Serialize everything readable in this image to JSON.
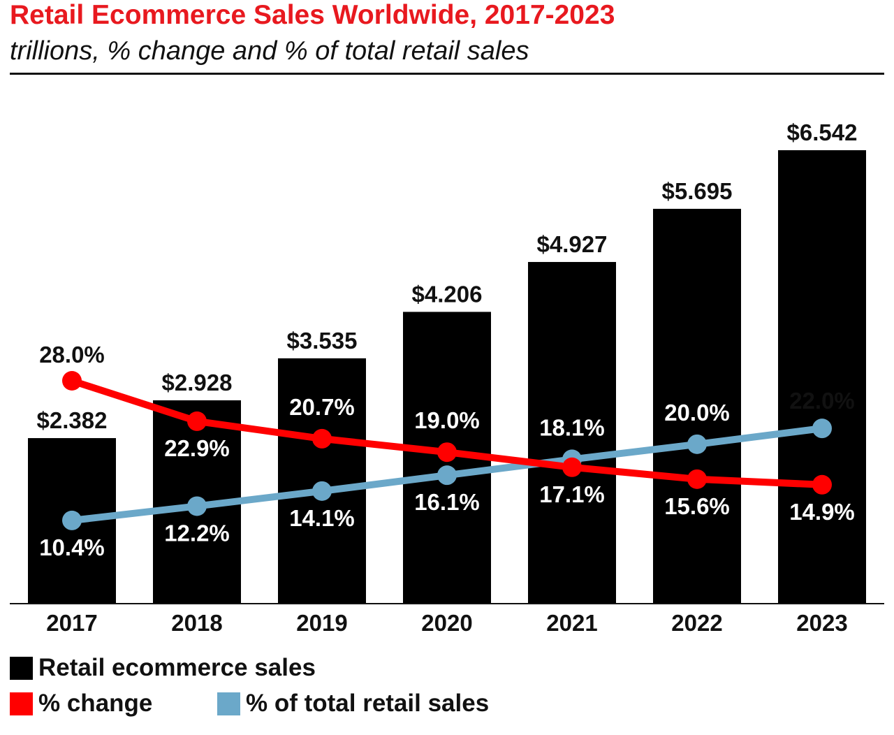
{
  "title": "Retail Ecommerce Sales Worldwide, 2017-2023",
  "subtitle": "trillions, % change and % of total retail sales",
  "colors": {
    "title": "#e8191f",
    "bars": "#000000",
    "change_line": "#ff0000",
    "share_line": "#6ba8c9"
  },
  "chart_data": {
    "type": "bar",
    "categories": [
      "2017",
      "2018",
      "2019",
      "2020",
      "2021",
      "2022",
      "2023"
    ],
    "series": [
      {
        "name": "Retail ecommerce sales",
        "type": "bar",
        "values": [
          2.382,
          2.928,
          3.535,
          4.206,
          4.927,
          5.695,
          6.542
        ],
        "labels": [
          "$2.382",
          "$2.928",
          "$3.535",
          "$4.206",
          "$4.927",
          "$5.695",
          "$6.542"
        ]
      },
      {
        "name": "% change",
        "type": "line",
        "values": [
          28.0,
          22.9,
          20.7,
          19.0,
          17.1,
          15.6,
          14.9
        ],
        "labels": [
          "28.0%",
          "22.9%",
          "20.7%",
          "19.0%",
          "17.1%",
          "15.6%",
          "14.9%"
        ]
      },
      {
        "name": "% of total retail sales",
        "type": "line",
        "values": [
          10.4,
          12.2,
          14.1,
          16.1,
          18.1,
          20.0,
          22.0
        ],
        "labels": [
          "10.4%",
          "12.2%",
          "14.1%",
          "16.1%",
          "18.1%",
          "20.0%",
          "22.0%"
        ]
      }
    ],
    "bar_ylim": [
      0,
      6.542
    ],
    "line_ylim": [
      0,
      28
    ],
    "grid": false,
    "legend_position": "bottom-left"
  }
}
